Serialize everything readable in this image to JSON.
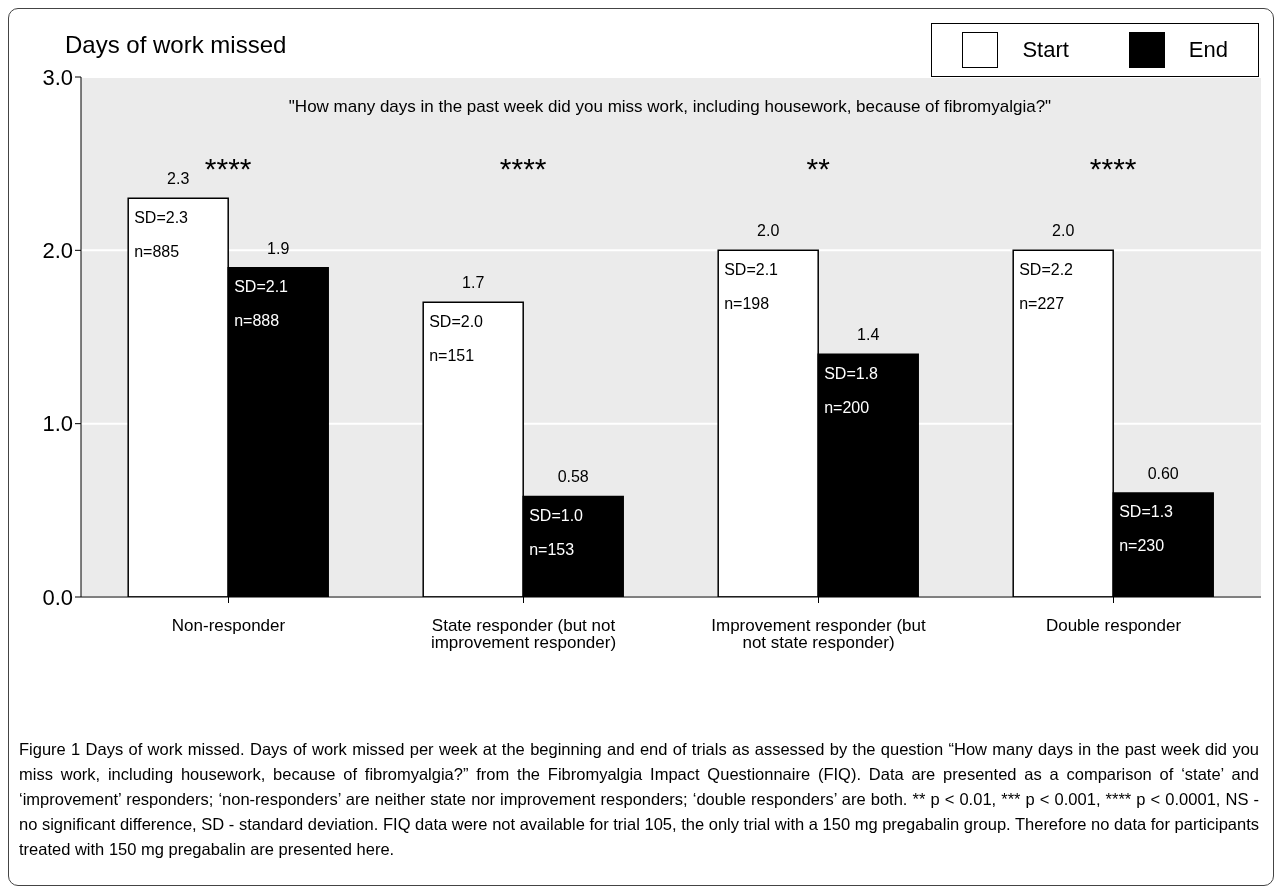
{
  "chart_data": {
    "type": "bar",
    "title": "Days of work missed",
    "categories": [
      "Non-responder",
      "State responder (but not improvement responder)",
      "Improvement responder (but not state responder)",
      "Double responder"
    ],
    "series": [
      {
        "name": "Start",
        "color": "#ffffff",
        "values": [
          2.3,
          1.7,
          2.0,
          2.0
        ],
        "value_labels": [
          "2.3",
          "1.7",
          "2.0",
          "2.0"
        ]
      },
      {
        "name": "End",
        "color": "#000000",
        "values": [
          1.9,
          0.58,
          1.4,
          0.6
        ],
        "value_labels": [
          "1.9",
          "0.58",
          "1.4",
          "0.60"
        ]
      }
    ],
    "ylim": [
      0,
      3
    ],
    "yticks": [
      {
        "value": 0,
        "label": "0.0"
      },
      {
        "value": 1,
        "label": "1.0"
      },
      {
        "value": 2,
        "label": "2.0"
      },
      {
        "value": 3,
        "label": "3.0"
      }
    ],
    "grid": "y",
    "legend": "top right",
    "annotations": [
      "\"How many days in the past week did you miss work, including housework, because of fibromyalgia?\"",
      "****",
      "****",
      "**",
      "****",
      "SD=2.3",
      "n=885",
      "SD=2.1",
      "n=888",
      "SD=2.0",
      "n=151",
      "SD=1.0",
      "n=153",
      "SD=2.1",
      "n=198",
      "SD=1.8",
      "n=200",
      "SD=2.2",
      "n=227",
      "SD=1.3",
      "n=230",
      "Figure 1 Days of work missed. Days of work missed per week at the beginning and end of trials as assessed by the question “How many days in the past week did you miss work, including housework, because of fibromyalgia?” from the Fibromyalgia Impact Questionnaire (FIQ). Data are presented as a comparison of ‘state’ and ‘improvement’ responders; ‘non-responders’ are neither state nor improvement responders; ‘double responders’ are both. ** p < 0.01, *** p < 0.001, **** p < 0.0001, NS - no significant difference, SD - standard deviation. FIQ data were not available for trial 105, the only trial with a 150 mg pregabalin group. Therefore no data for participants treated with 150 mg pregabalin are presented here."
    ]
  }
}
